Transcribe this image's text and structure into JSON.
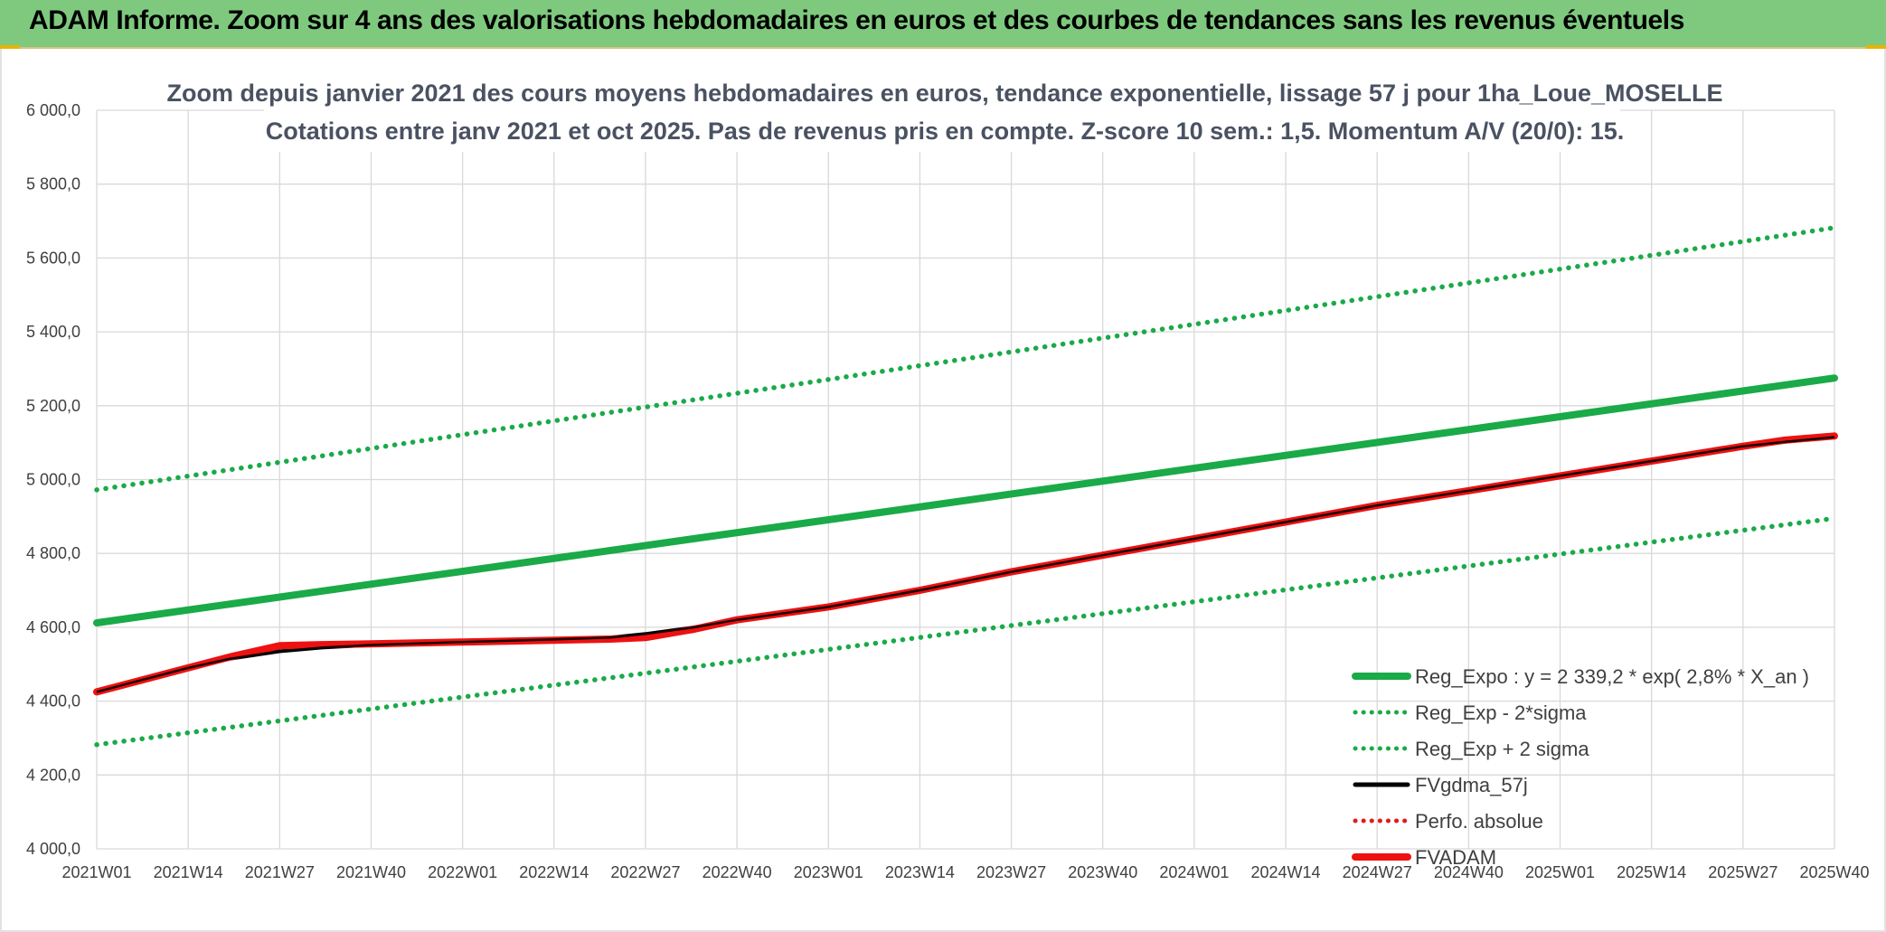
{
  "header": {
    "title": "ADAM Informe. Zoom sur 4 ans des valorisations hebdomadaires en euros et des courbes de tendances sans les revenus éventuels"
  },
  "colors": {
    "header_bg": "#7ec97e",
    "reg_expo": "#1aaa48",
    "sigma": "#1aaa48",
    "fvgdma": "#000000",
    "perfo": "#d91e1e",
    "fvadam": "#ee1111",
    "grid": "#d9d9d9",
    "text": "#404040"
  },
  "chart_data": {
    "type": "line",
    "title": "Zoom depuis janvier 2021 des cours moyens hebdomadaires en euros, tendance exponentielle, lissage 57 j pour 1ha_Loue_MOSELLE",
    "subtitle": "Cotations entre janv 2021 et oct 2025. Pas de revenus pris en compte. Z-score 10 sem.: 1,5. Momentum A/V (20/0): 15.",
    "x_ticks": [
      "2021W01",
      "2021W14",
      "2021W27",
      "2021W40",
      "2022W01",
      "2022W14",
      "2022W27",
      "2022W40",
      "2023W01",
      "2023W14",
      "2023W27",
      "2023W40",
      "2024W01",
      "2024W14",
      "2024W27",
      "2024W40",
      "2025W01",
      "2025W14",
      "2025W27",
      "2025W40"
    ],
    "x_range": [
      "2021W01",
      "2025W40"
    ],
    "y_ticks": [
      "4 000,0",
      "4 200,0",
      "4 400,0",
      "4 600,0",
      "4 800,0",
      "5 000,0",
      "5 200,0",
      "5 400,0",
      "5 600,0",
      "5 800,0",
      "6 000,0"
    ],
    "ylim": [
      4000,
      6000
    ],
    "grid": true,
    "legend_position": "bottom-right",
    "series": [
      {
        "name": "Reg_Expo : y = 2 339,2 * exp( 2,8% *  X_an )",
        "style": "solid-thick",
        "color": "#1aaa48",
        "points": [
          [
            "2021W01",
            4612
          ],
          [
            "2025W40",
            5275
          ]
        ]
      },
      {
        "name": "Reg_Exp - 2*sigma",
        "style": "dotted",
        "color": "#1aaa48",
        "points": [
          [
            "2021W01",
            4282
          ],
          [
            "2025W40",
            4895
          ]
        ]
      },
      {
        "name": "Reg_Exp + 2 sigma",
        "style": "dotted",
        "color": "#1aaa48",
        "points": [
          [
            "2021W01",
            4972
          ],
          [
            "2025W40",
            5682
          ]
        ]
      },
      {
        "name": "FVgdma_57j",
        "style": "solid",
        "color": "#000000",
        "points": [
          [
            "2021W01",
            4425
          ],
          [
            "2021W07",
            4455
          ],
          [
            "2021W14",
            4490
          ],
          [
            "2021W20",
            4515
          ],
          [
            "2021W27",
            4535
          ],
          [
            "2021W33",
            4545
          ],
          [
            "2021W40",
            4552
          ],
          [
            "2022W01",
            4560
          ],
          [
            "2022W14",
            4567
          ],
          [
            "2022W22",
            4572
          ],
          [
            "2022W27",
            4582
          ],
          [
            "2022W34",
            4600
          ],
          [
            "2022W40",
            4620
          ],
          [
            "2023W01",
            4655
          ],
          [
            "2023W14",
            4700
          ],
          [
            "2023W27",
            4750
          ],
          [
            "2023W40",
            4795
          ],
          [
            "2024W01",
            4840
          ],
          [
            "2024W14",
            4885
          ],
          [
            "2024W27",
            4930
          ],
          [
            "2024W40",
            4970
          ],
          [
            "2025W01",
            5010
          ],
          [
            "2025W14",
            5050
          ],
          [
            "2025W27",
            5090
          ],
          [
            "2025W33",
            5102
          ],
          [
            "2025W40",
            5115
          ]
        ]
      },
      {
        "name": "Perfo. absolue",
        "style": "dotted",
        "color": "#d91e1e",
        "points": []
      },
      {
        "name": "FVADAM",
        "style": "solid-thick",
        "color": "#ee1111",
        "points": [
          [
            "2021W01",
            4425
          ],
          [
            "2021W07",
            4455
          ],
          [
            "2021W14",
            4490
          ],
          [
            "2021W20",
            4520
          ],
          [
            "2021W27",
            4550
          ],
          [
            "2021W33",
            4553
          ],
          [
            "2021W40",
            4555
          ],
          [
            "2022W01",
            4560
          ],
          [
            "2022W14",
            4565
          ],
          [
            "2022W22",
            4568
          ],
          [
            "2022W27",
            4572
          ],
          [
            "2022W34",
            4595
          ],
          [
            "2022W40",
            4620
          ],
          [
            "2023W01",
            4655
          ],
          [
            "2023W14",
            4700
          ],
          [
            "2023W27",
            4750
          ],
          [
            "2023W40",
            4795
          ],
          [
            "2024W01",
            4840
          ],
          [
            "2024W14",
            4885
          ],
          [
            "2024W27",
            4930
          ],
          [
            "2024W40",
            4970
          ],
          [
            "2025W01",
            5010
          ],
          [
            "2025W14",
            5050
          ],
          [
            "2025W27",
            5090
          ],
          [
            "2025W33",
            5107
          ],
          [
            "2025W40",
            5118
          ]
        ]
      }
    ]
  }
}
